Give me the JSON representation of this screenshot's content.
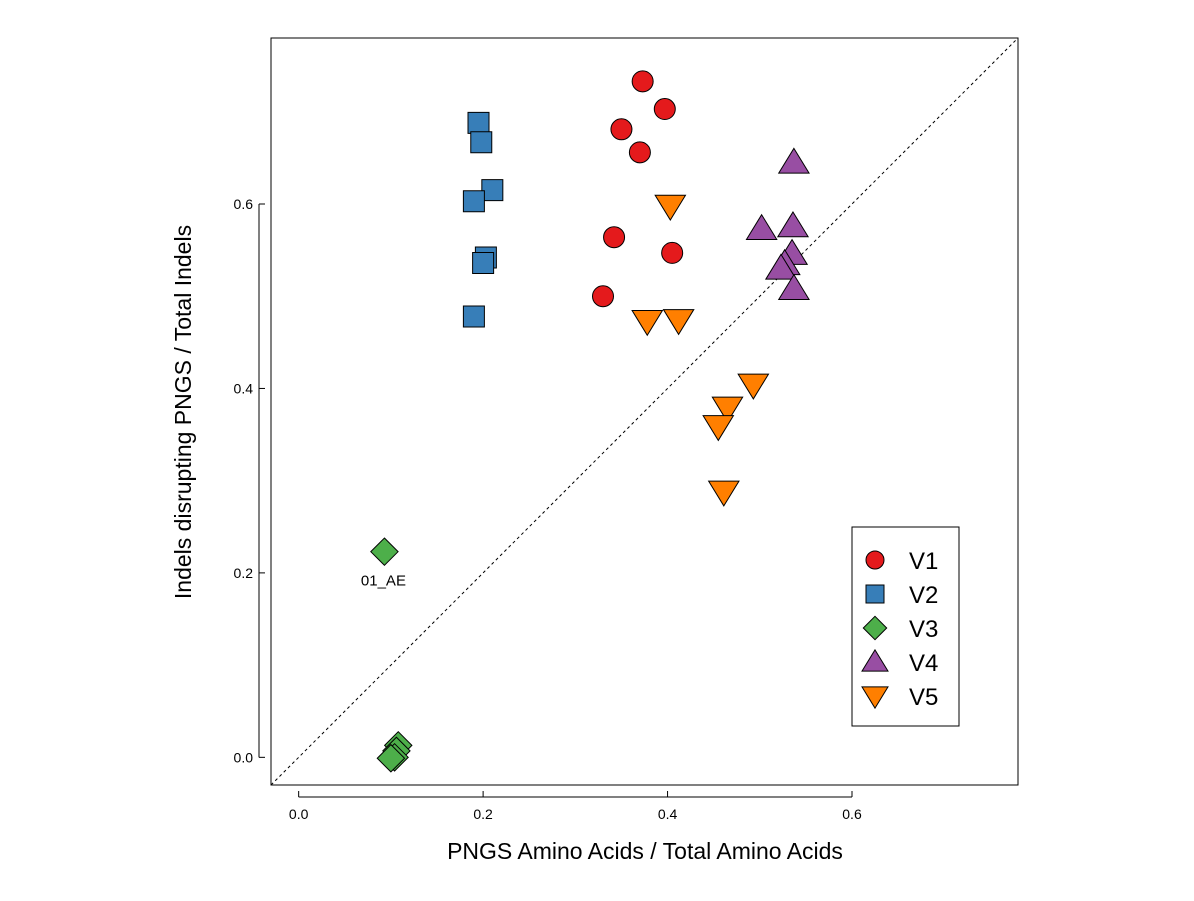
{
  "chart_data": {
    "type": "scatter",
    "title": "",
    "xlabel": "PNGS Amino Acids / Total Amino Acids",
    "ylabel": "Indels disrupting PNGS / Total Indels",
    "xlim": [
      -0.03,
      0.78
    ],
    "ylim": [
      -0.03,
      0.78
    ],
    "x_ticks": [
      0.0,
      0.2,
      0.4,
      0.6
    ],
    "y_ticks": [
      0.0,
      0.2,
      0.4,
      0.6
    ],
    "x_tick_labels": [
      "0.0",
      "0.2",
      "0.4",
      "0.6"
    ],
    "y_tick_labels": [
      "0.0",
      "0.2",
      "0.4",
      "0.6"
    ],
    "grid": false,
    "reference_line": {
      "style": "dashed",
      "slope": 1,
      "intercept": 0
    },
    "legend": {
      "position": "bottom-right"
    },
    "series": [
      {
        "name": "V1",
        "marker": "circle",
        "color": "#E41A1C",
        "points": [
          {
            "x": 0.373,
            "y": 0.733
          },
          {
            "x": 0.397,
            "y": 0.703
          },
          {
            "x": 0.35,
            "y": 0.681
          },
          {
            "x": 0.37,
            "y": 0.656
          },
          {
            "x": 0.342,
            "y": 0.564
          },
          {
            "x": 0.405,
            "y": 0.547
          },
          {
            "x": 0.33,
            "y": 0.5
          }
        ]
      },
      {
        "name": "V2",
        "marker": "square",
        "color": "#377EB8",
        "points": [
          {
            "x": 0.195,
            "y": 0.688
          },
          {
            "x": 0.198,
            "y": 0.667
          },
          {
            "x": 0.21,
            "y": 0.615
          },
          {
            "x": 0.19,
            "y": 0.603
          },
          {
            "x": 0.203,
            "y": 0.542
          },
          {
            "x": 0.2,
            "y": 0.536
          },
          {
            "x": 0.19,
            "y": 0.478
          }
        ]
      },
      {
        "name": "V3",
        "marker": "diamond",
        "color": "#4DAF4A",
        "points": [
          {
            "x": 0.093,
            "y": 0.223,
            "label": "01_AE"
          },
          {
            "x": 0.108,
            "y": 0.013
          },
          {
            "x": 0.106,
            "y": 0.007
          },
          {
            "x": 0.104,
            "y": 0.0
          },
          {
            "x": 0.1,
            "y": -0.001
          }
        ]
      },
      {
        "name": "V4",
        "marker": "triangle-up",
        "color": "#984EA3",
        "points": [
          {
            "x": 0.537,
            "y": 0.645
          },
          {
            "x": 0.502,
            "y": 0.573
          },
          {
            "x": 0.536,
            "y": 0.576
          },
          {
            "x": 0.535,
            "y": 0.546
          },
          {
            "x": 0.527,
            "y": 0.535
          },
          {
            "x": 0.523,
            "y": 0.53
          },
          {
            "x": 0.537,
            "y": 0.508
          }
        ]
      },
      {
        "name": "V5",
        "marker": "triangle-down",
        "color": "#FF7F00",
        "points": [
          {
            "x": 0.403,
            "y": 0.598
          },
          {
            "x": 0.378,
            "y": 0.473
          },
          {
            "x": 0.412,
            "y": 0.474
          },
          {
            "x": 0.493,
            "y": 0.404
          },
          {
            "x": 0.465,
            "y": 0.379
          },
          {
            "x": 0.455,
            "y": 0.359
          },
          {
            "x": 0.461,
            "y": 0.288
          }
        ]
      }
    ]
  }
}
